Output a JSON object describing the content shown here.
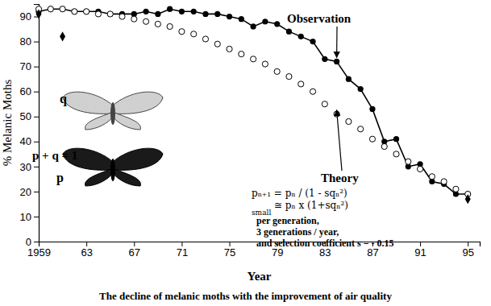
{
  "chart_data": {
    "type": "line",
    "x_label": "Year",
    "y_label": "% Melanic Moths",
    "caption": "The decline of melanic moths with the improvement of air quality",
    "xlim": [
      1959,
      1996
    ],
    "xticks": [
      1959,
      {
        "value": 1963,
        "label": "63"
      },
      {
        "value": 1967,
        "label": "67"
      },
      {
        "value": 1971,
        "label": "71"
      },
      {
        "value": 1975,
        "label": "75"
      },
      {
        "value": 1979,
        "label": "79"
      },
      {
        "value": 1983,
        "label": "83"
      },
      {
        "value": 1987,
        "label": "87"
      },
      {
        "value": 1991,
        "label": "91"
      },
      {
        "value": 1995,
        "label": "95"
      }
    ],
    "ylim": [
      0,
      95
    ],
    "yticks": [
      0,
      10,
      20,
      30,
      40,
      50,
      60,
      70,
      80,
      90
    ],
    "grid": false,
    "series": [
      {
        "x": [
          1959,
          1960,
          1961,
          1962,
          1963,
          1964,
          1965,
          1966,
          1967,
          1968,
          1969,
          1970,
          1971,
          1972,
          1973,
          1974,
          1975,
          1976,
          1977,
          1978,
          1979,
          1980,
          1981,
          1982,
          1983,
          1984,
          1985,
          1986,
          1987,
          1988,
          1989,
          1990,
          1991,
          1992,
          1993,
          1994,
          1995
        ],
        "values": [
          92,
          93,
          93,
          92,
          92,
          92,
          91,
          91,
          91,
          92,
          91,
          93,
          92,
          92,
          91,
          91,
          90,
          89,
          86,
          88,
          87,
          84,
          82,
          80,
          73,
          72,
          65,
          61,
          53,
          40,
          41,
          30,
          31,
          24,
          23,
          19,
          19
        ],
        "color": "#000000",
        "marker": "circle",
        "line_style": "solid"
      },
      {
        "x": [
          1959,
          1960,
          1961,
          1962,
          1963,
          1964,
          1965,
          1966,
          1967,
          1968,
          1969,
          1970,
          1971,
          1972,
          1973,
          1974,
          1975,
          1976,
          1977,
          1978,
          1979,
          1980,
          1981,
          1982,
          1983,
          1984,
          1985,
          1986,
          1987,
          1988,
          1989,
          1990,
          1991,
          1992,
          1993,
          1994,
          1995
        ],
        "values": [
          93,
          93,
          93,
          92,
          92,
          91,
          91,
          90,
          89,
          88,
          87,
          86,
          84,
          83,
          81,
          79,
          77,
          75,
          73,
          71,
          68,
          66,
          63,
          60,
          55,
          51,
          48,
          45,
          41,
          38,
          35,
          32,
          29,
          26,
          24,
          21,
          19
        ],
        "color": "#000000",
        "marker": "open-circle",
        "line_style": "none"
      },
      {
        "x": [
          1959,
          1961,
          1995
        ],
        "values": [
          91,
          82,
          17
        ],
        "color": "#000000",
        "marker": "diamond",
        "line_style": "none"
      }
    ],
    "annotations": [
      "Observation",
      "Theory",
      "q",
      "p + q = 1",
      "p",
      "pₙ₊₁ = pₙ / (1 - sqₙ²)",
      "small",
      "≅ pₙ x (1+sqₙ²)",
      "per generation,",
      "3 generations / year,",
      "and selection coefficient s = - 0.15"
    ]
  }
}
